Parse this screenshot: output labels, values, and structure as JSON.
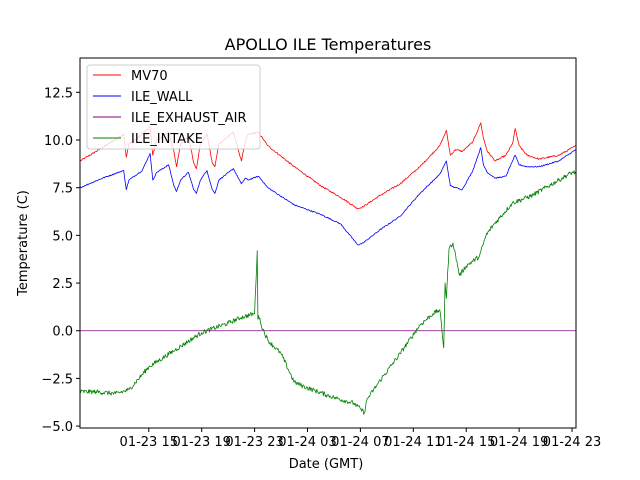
{
  "chart_data": {
    "type": "line",
    "title": "APOLLO ILE Temperatures",
    "xlabel": "Date (GMT)",
    "ylabel": "Temperature (C)",
    "x_unit": "hours since 01-23 00:00 GMT",
    "xlim": [
      9.8,
      47.3
    ],
    "ylim": [
      -5.1,
      14.3
    ],
    "x_ticks": [
      {
        "value": 15,
        "label": "01-23 15"
      },
      {
        "value": 19,
        "label": "01-23 19"
      },
      {
        "value": 23,
        "label": "01-23 23"
      },
      {
        "value": 27,
        "label": "01-24 03"
      },
      {
        "value": 31,
        "label": "01-24 07"
      },
      {
        "value": 35,
        "label": "01-24 11"
      },
      {
        "value": 39,
        "label": "01-24 15"
      },
      {
        "value": 43,
        "label": "01-24 19"
      },
      {
        "value": 47,
        "label": "01-24 23"
      }
    ],
    "y_ticks": [
      {
        "value": -5.0,
        "label": "−5.0"
      },
      {
        "value": -2.5,
        "label": "−2.5"
      },
      {
        "value": 0.0,
        "label": "0.0"
      },
      {
        "value": 2.5,
        "label": "2.5"
      },
      {
        "value": 5.0,
        "label": "5.0"
      },
      {
        "value": 7.5,
        "label": "7.5"
      },
      {
        "value": 10.0,
        "label": "10.0"
      },
      {
        "value": 12.5,
        "label": "12.5"
      }
    ],
    "legend_position": "upper-left",
    "series": [
      {
        "name": "MV70",
        "color": "#ff0000",
        "x": [
          9.8,
          11.5,
          13.1,
          13.3,
          13.5,
          14.5,
          15.1,
          15.3,
          15.6,
          16.5,
          16.9,
          17.1,
          17.4,
          18.0,
          18.4,
          18.6,
          18.9,
          19.4,
          19.8,
          20.0,
          20.3,
          21.4,
          22.0,
          22.3,
          22.5,
          23.3,
          24.0,
          26.0,
          28.0,
          29.5,
          30.8,
          31.2,
          32.5,
          34.0,
          35.5,
          37.0,
          37.5,
          37.8,
          38.2,
          38.7,
          39.5,
          40.1,
          40.3,
          40.6,
          41.2,
          42.0,
          42.5,
          42.7,
          43.0,
          43.6,
          44.5,
          46.0,
          47.3
        ],
        "y": [
          8.9,
          9.6,
          10.3,
          9.1,
          9.8,
          10.3,
          10.7,
          9.2,
          10.0,
          10.4,
          9.4,
          8.6,
          9.8,
          10.2,
          8.8,
          8.5,
          9.8,
          10.3,
          8.8,
          8.6,
          9.8,
          10.4,
          8.9,
          9.9,
          10.3,
          10.4,
          9.7,
          8.6,
          7.6,
          7.0,
          6.4,
          6.5,
          7.1,
          7.7,
          8.6,
          9.7,
          10.5,
          9.2,
          9.5,
          9.4,
          9.9,
          10.9,
          10.1,
          9.4,
          8.9,
          9.2,
          9.8,
          10.6,
          9.7,
          9.2,
          9.0,
          9.2,
          9.7
        ]
      },
      {
        "name": "ILE_WALL",
        "color": "#0000ff",
        "x": [
          9.8,
          11.5,
          13.1,
          13.3,
          13.5,
          14.5,
          15.1,
          15.3,
          15.6,
          16.5,
          16.9,
          17.1,
          17.4,
          18.0,
          18.4,
          18.6,
          18.9,
          19.4,
          19.8,
          20.0,
          20.3,
          21.4,
          22.0,
          22.3,
          22.5,
          23.3,
          24.0,
          26.0,
          28.0,
          29.5,
          30.8,
          31.2,
          32.5,
          34.0,
          35.5,
          37.0,
          37.5,
          37.8,
          38.2,
          38.7,
          39.5,
          40.1,
          40.3,
          40.6,
          41.2,
          42.0,
          42.5,
          42.7,
          43.0,
          43.6,
          44.5,
          46.0,
          47.3
        ],
        "y": [
          7.5,
          8.0,
          8.4,
          7.4,
          7.9,
          8.4,
          9.3,
          7.9,
          8.3,
          8.7,
          7.6,
          7.3,
          7.9,
          8.3,
          7.4,
          7.2,
          7.9,
          8.4,
          7.4,
          7.2,
          7.9,
          8.5,
          7.7,
          8.0,
          7.9,
          8.1,
          7.5,
          6.6,
          6.1,
          5.6,
          4.5,
          4.6,
          5.3,
          6.0,
          7.2,
          8.2,
          8.9,
          7.6,
          7.5,
          7.4,
          8.4,
          9.6,
          8.7,
          8.3,
          8.0,
          8.1,
          8.9,
          9.2,
          8.7,
          8.6,
          8.6,
          8.9,
          9.5
        ]
      },
      {
        "name": "ILE_EXHAUST_AIR",
        "color": "#800080",
        "x": [
          9.8,
          47.3
        ],
        "y": [
          0.0,
          0.0
        ]
      },
      {
        "name": "ILE_INTAKE",
        "color": "#008000",
        "x": [
          9.8,
          11.0,
          12.5,
          13.5,
          15.0,
          17.0,
          19.0,
          21.0,
          22.0,
          23.0,
          23.2,
          23.25,
          23.3,
          23.5,
          24.0,
          25.0,
          26.0,
          27.0,
          29.0,
          30.5,
          31.0,
          31.3,
          31.5,
          32.5,
          34.0,
          35.5,
          36.5,
          37.0,
          37.3,
          37.4,
          37.5,
          37.7,
          38.0,
          38.5,
          39.0,
          40.0,
          40.5,
          41.0,
          42.5,
          44.0,
          46.0,
          47.0,
          47.3
        ],
        "y": [
          -3.2,
          -3.2,
          -3.3,
          -3.1,
          -1.9,
          -1.0,
          -0.1,
          0.4,
          0.7,
          0.9,
          4.2,
          0.6,
          0.8,
          0.3,
          -0.5,
          -1.2,
          -2.7,
          -3.0,
          -3.5,
          -3.8,
          -4.1,
          -4.3,
          -3.6,
          -2.6,
          -1.2,
          0.3,
          0.9,
          1.1,
          -0.9,
          2.5,
          1.7,
          4.3,
          4.6,
          2.9,
          3.4,
          3.9,
          5.0,
          5.5,
          6.7,
          7.1,
          7.9,
          8.3,
          8.3
        ]
      }
    ]
  }
}
